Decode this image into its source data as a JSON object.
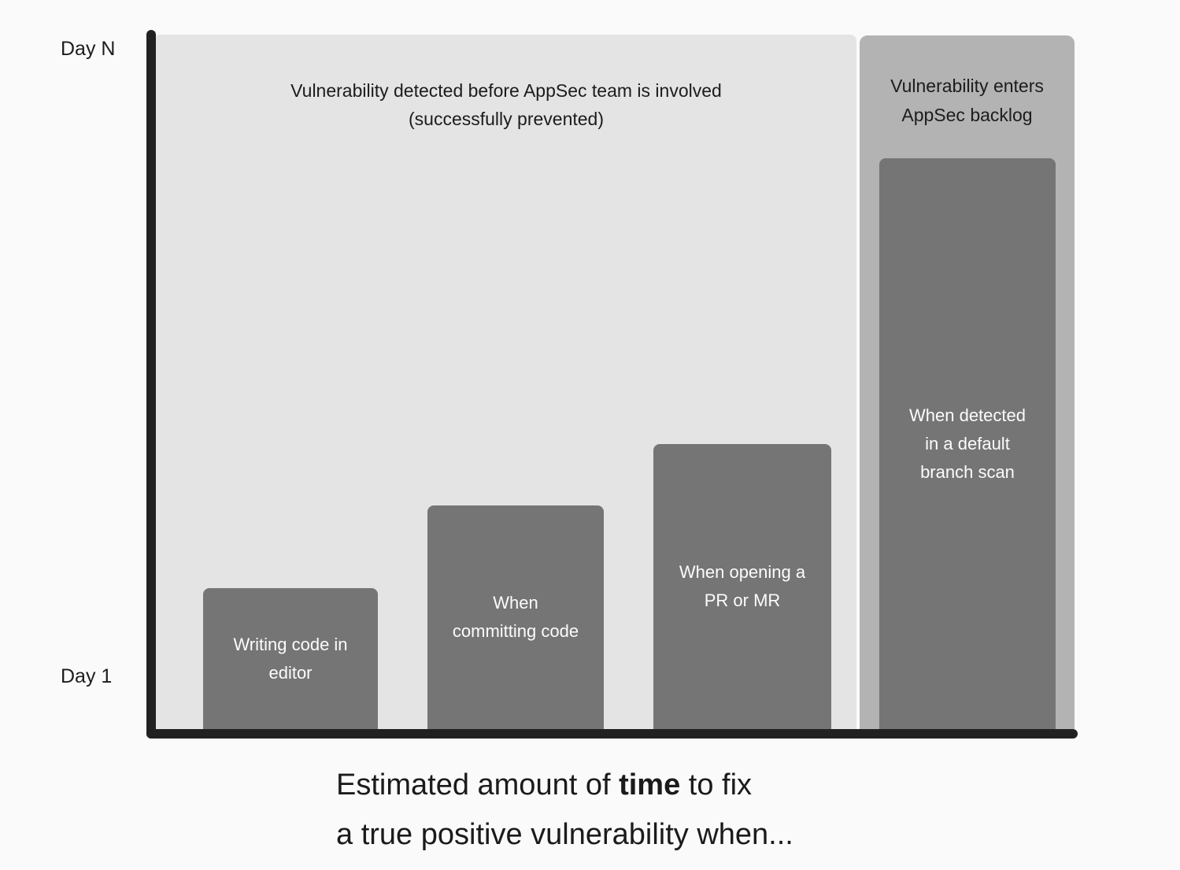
{
  "axis": {
    "top_label": "Day N",
    "bottom_label": "Day 1"
  },
  "regions": {
    "prevented": {
      "label": "Vulnerability detected before AppSec team is involved (successfully prevented)",
      "lines": [
        "Vulnerability detected before AppSec team is involved",
        "(successfully prevented)"
      ]
    },
    "backlog": {
      "label": "Vulnerability enters AppSec backlog",
      "lines": [
        "Vulnerability enters",
        "AppSec backlog"
      ]
    }
  },
  "chart_data": {
    "type": "bar",
    "title": "Estimated amount of time to fix a true positive vulnerability when...",
    "xlabel": "",
    "ylabel": "",
    "y_axis_ticks": [
      "Day 1",
      "Day N"
    ],
    "y_axis_meaning": "Estimated time to fix, from Day 1 (fastest) up to Day N (longest)",
    "grid": false,
    "legend": "none",
    "categories": [
      "Writing code in editor",
      "When committing code",
      "When opening a PR or MR",
      "When detected in a default branch scan"
    ],
    "bars": [
      {
        "label": "Writing code in editor",
        "lines": [
          "Writing code in",
          "editor"
        ],
        "value_rel": 0.203
      },
      {
        "label": "When committing code",
        "lines": [
          "When",
          "committing code"
        ],
        "value_rel": 0.322
      },
      {
        "label": "When opening a PR or MR",
        "lines": [
          "When opening a",
          "PR or MR"
        ],
        "value_rel": 0.41
      },
      {
        "label": "When detected in a default branch scan",
        "lines": [
          "When detected",
          "in a default",
          "branch scan"
        ],
        "value_rel": 0.822
      }
    ],
    "annotations": [
      "Vulnerability detected before AppSec team is involved (successfully prevented)",
      "Vulnerability enters AppSec backlog"
    ]
  },
  "caption": {
    "full": "Estimated amount of time to fix a true positive vulnerability when...",
    "line1_prefix": "Estimated amount of ",
    "line1_bold": "time",
    "line1_suffix": " to fix",
    "line2": "a true positive vulnerability when..."
  },
  "colors": {
    "background": "#fafafa",
    "prevented_region": "#e4e4e4",
    "backlog_panel": "#b3b3b3",
    "bar_fill": "#757575",
    "axis": "#212121",
    "text_dark": "#1c1c1c",
    "text_on_bar": "#fcfcfc"
  }
}
